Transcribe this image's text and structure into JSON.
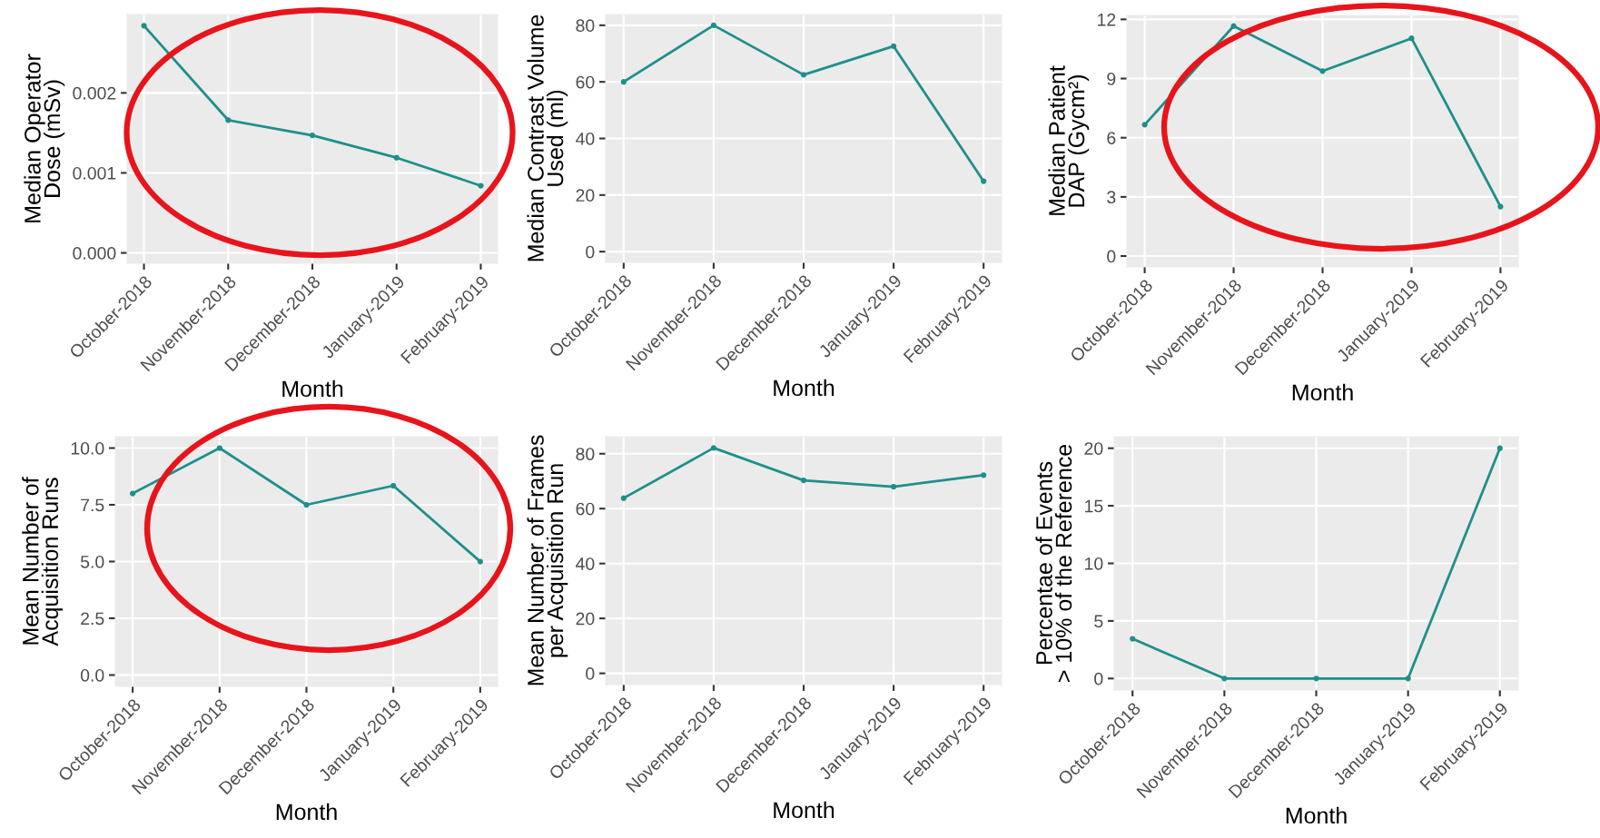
{
  "chart_data": [
    {
      "type": "line",
      "xlabel": "Month",
      "ylabel": "Median Operator\nDose (mSv)",
      "categories": [
        "October-2018",
        "November-2018",
        "December-2018",
        "January-2019",
        "February-2019"
      ],
      "series": [
        {
          "color": "#1f8f8a",
          "values": [
            0.00284,
            0.00166,
            0.00147,
            0.00119,
            0.00084
          ]
        }
      ],
      "ylim": [
        -0.00013,
        0.00298
      ],
      "yticks": [
        {
          "value": 0,
          "label": "0.000"
        },
        {
          "value": 0.001,
          "label": "0.001"
        },
        {
          "value": 0.002,
          "label": "0.002"
        }
      ],
      "grid": true,
      "marker": "circle",
      "line_style": "solid"
    },
    {
      "type": "line",
      "xlabel": "Month",
      "ylabel": "Median Contrast Volume\nUsed (ml)",
      "categories": [
        "October-2018",
        "November-2018",
        "December-2018",
        "January-2019",
        "February-2019"
      ],
      "series": [
        {
          "color": "#1f8f8a",
          "values": [
            60,
            80,
            62.5,
            72.6,
            24.9
          ]
        }
      ],
      "ylim": [
        -3.8,
        83.8
      ],
      "yticks": [
        0,
        20,
        40,
        60,
        80
      ],
      "grid": true,
      "marker": "circle",
      "line_style": "solid"
    },
    {
      "type": "line",
      "xlabel": "Month",
      "ylabel": "Median Patient\nDAP (Gycm²)",
      "categories": [
        "October-2018",
        "November-2018",
        "December-2018",
        "January-2019",
        "February-2019"
      ],
      "series": [
        {
          "color": "#1f8f8a",
          "values": [
            6.66,
            11.66,
            9.38,
            11.04,
            2.51
          ]
        }
      ],
      "ylim": [
        -0.55,
        12.2
      ],
      "yticks": [
        0,
        3,
        6,
        9,
        12
      ],
      "grid": true,
      "marker": "circle",
      "line_style": "solid"
    },
    {
      "type": "line",
      "xlabel": "Month",
      "ylabel": "Mean Number of\nAcquisition Runs",
      "categories": [
        "October-2018",
        "November-2018",
        "December-2018",
        "January-2019",
        "February-2019"
      ],
      "series": [
        {
          "color": "#1f8f8a",
          "values": [
            8.0,
            10.0,
            7.5,
            8.34,
            5.0
          ]
        }
      ],
      "ylim": [
        -0.5,
        10.5
      ],
      "yticks": [
        {
          "value": 0,
          "label": "0.0"
        },
        2.5,
        {
          "value": 5,
          "label": "5.0"
        },
        7.5,
        {
          "value": 10,
          "label": "10.0"
        }
      ],
      "grid": true,
      "marker": "circle",
      "line_style": "solid"
    },
    {
      "type": "line",
      "xlabel": "Month",
      "ylabel": "Mean Number of Frames\nper Acquisition Run",
      "categories": [
        "October-2018",
        "November-2018",
        "December-2018",
        "January-2019",
        "February-2019"
      ],
      "series": [
        {
          "color": "#1f8f8a",
          "values": [
            63.8,
            82.1,
            70.3,
            68.0,
            72.2
          ]
        }
      ],
      "ylim": [
        -4.1,
        86.2
      ],
      "yticks": [
        0,
        20,
        40,
        60,
        80
      ],
      "grid": true,
      "marker": "circle",
      "line_style": "solid"
    },
    {
      "type": "line",
      "xlabel": "Month",
      "ylabel": "Percentae of Events\n> 10% of the Reference",
      "categories": [
        "October-2018",
        "November-2018",
        "December-2018",
        "January-2019",
        "February-2019"
      ],
      "series": [
        {
          "color": "#1f8f8a",
          "values": [
            3.45,
            0,
            0,
            0,
            20
          ]
        }
      ],
      "ylim": [
        -1,
        21
      ],
      "yticks": [
        0,
        5,
        10,
        15,
        20
      ],
      "grid": true,
      "marker": "circle",
      "line_style": "solid"
    }
  ]
}
